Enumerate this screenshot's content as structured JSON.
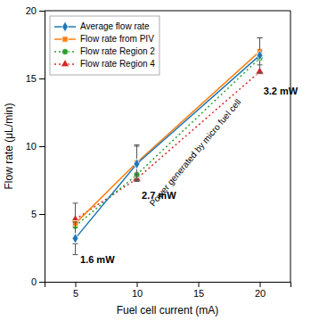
{
  "chart_data": {
    "type": "line",
    "x": [
      5,
      10,
      20
    ],
    "series": [
      {
        "name": "Average flow rate",
        "values": [
          3.2,
          8.7,
          16.7
        ],
        "errors": [
          1.2,
          1.3,
          1.3
        ],
        "marker": "diamond",
        "line_style": "solid"
      },
      {
        "name": "Flow rate from PIV",
        "values": [
          4.3,
          8.8,
          17.0
        ],
        "errors": [
          1.5,
          1.3,
          1.0
        ],
        "marker": "square",
        "line_style": "solid"
      },
      {
        "name": "Flow rate Region 2",
        "values": [
          4.1,
          7.9,
          16.5
        ],
        "marker": "circle",
        "line_style": "dotted"
      },
      {
        "name": "Flow rate Region 4",
        "values": [
          4.6,
          7.6,
          15.5
        ],
        "marker": "triangle",
        "line_style": "dotted"
      }
    ],
    "xlabel": "Fuel cell current (mA)",
    "ylabel": "Flow rate (μL/min)",
    "xlim": [
      2.5,
      22.5
    ],
    "ylim": [
      0,
      20
    ],
    "xticks": [
      5,
      10,
      15,
      20
    ],
    "yticks": [
      0,
      5,
      10,
      15,
      20
    ],
    "annotations": [
      {
        "text": "1.6 mW",
        "x": 5.4,
        "y": 1.6
      },
      {
        "text": "2.7 mW",
        "x": 10.4,
        "y": 6.3
      },
      {
        "text": "3.2 mW",
        "x": 20.3,
        "y": 14.0
      },
      {
        "text": "Power generated by micro fuel cell",
        "x": 14.8,
        "y": 9.5
      }
    ],
    "grid": false,
    "legend": "upper left"
  }
}
